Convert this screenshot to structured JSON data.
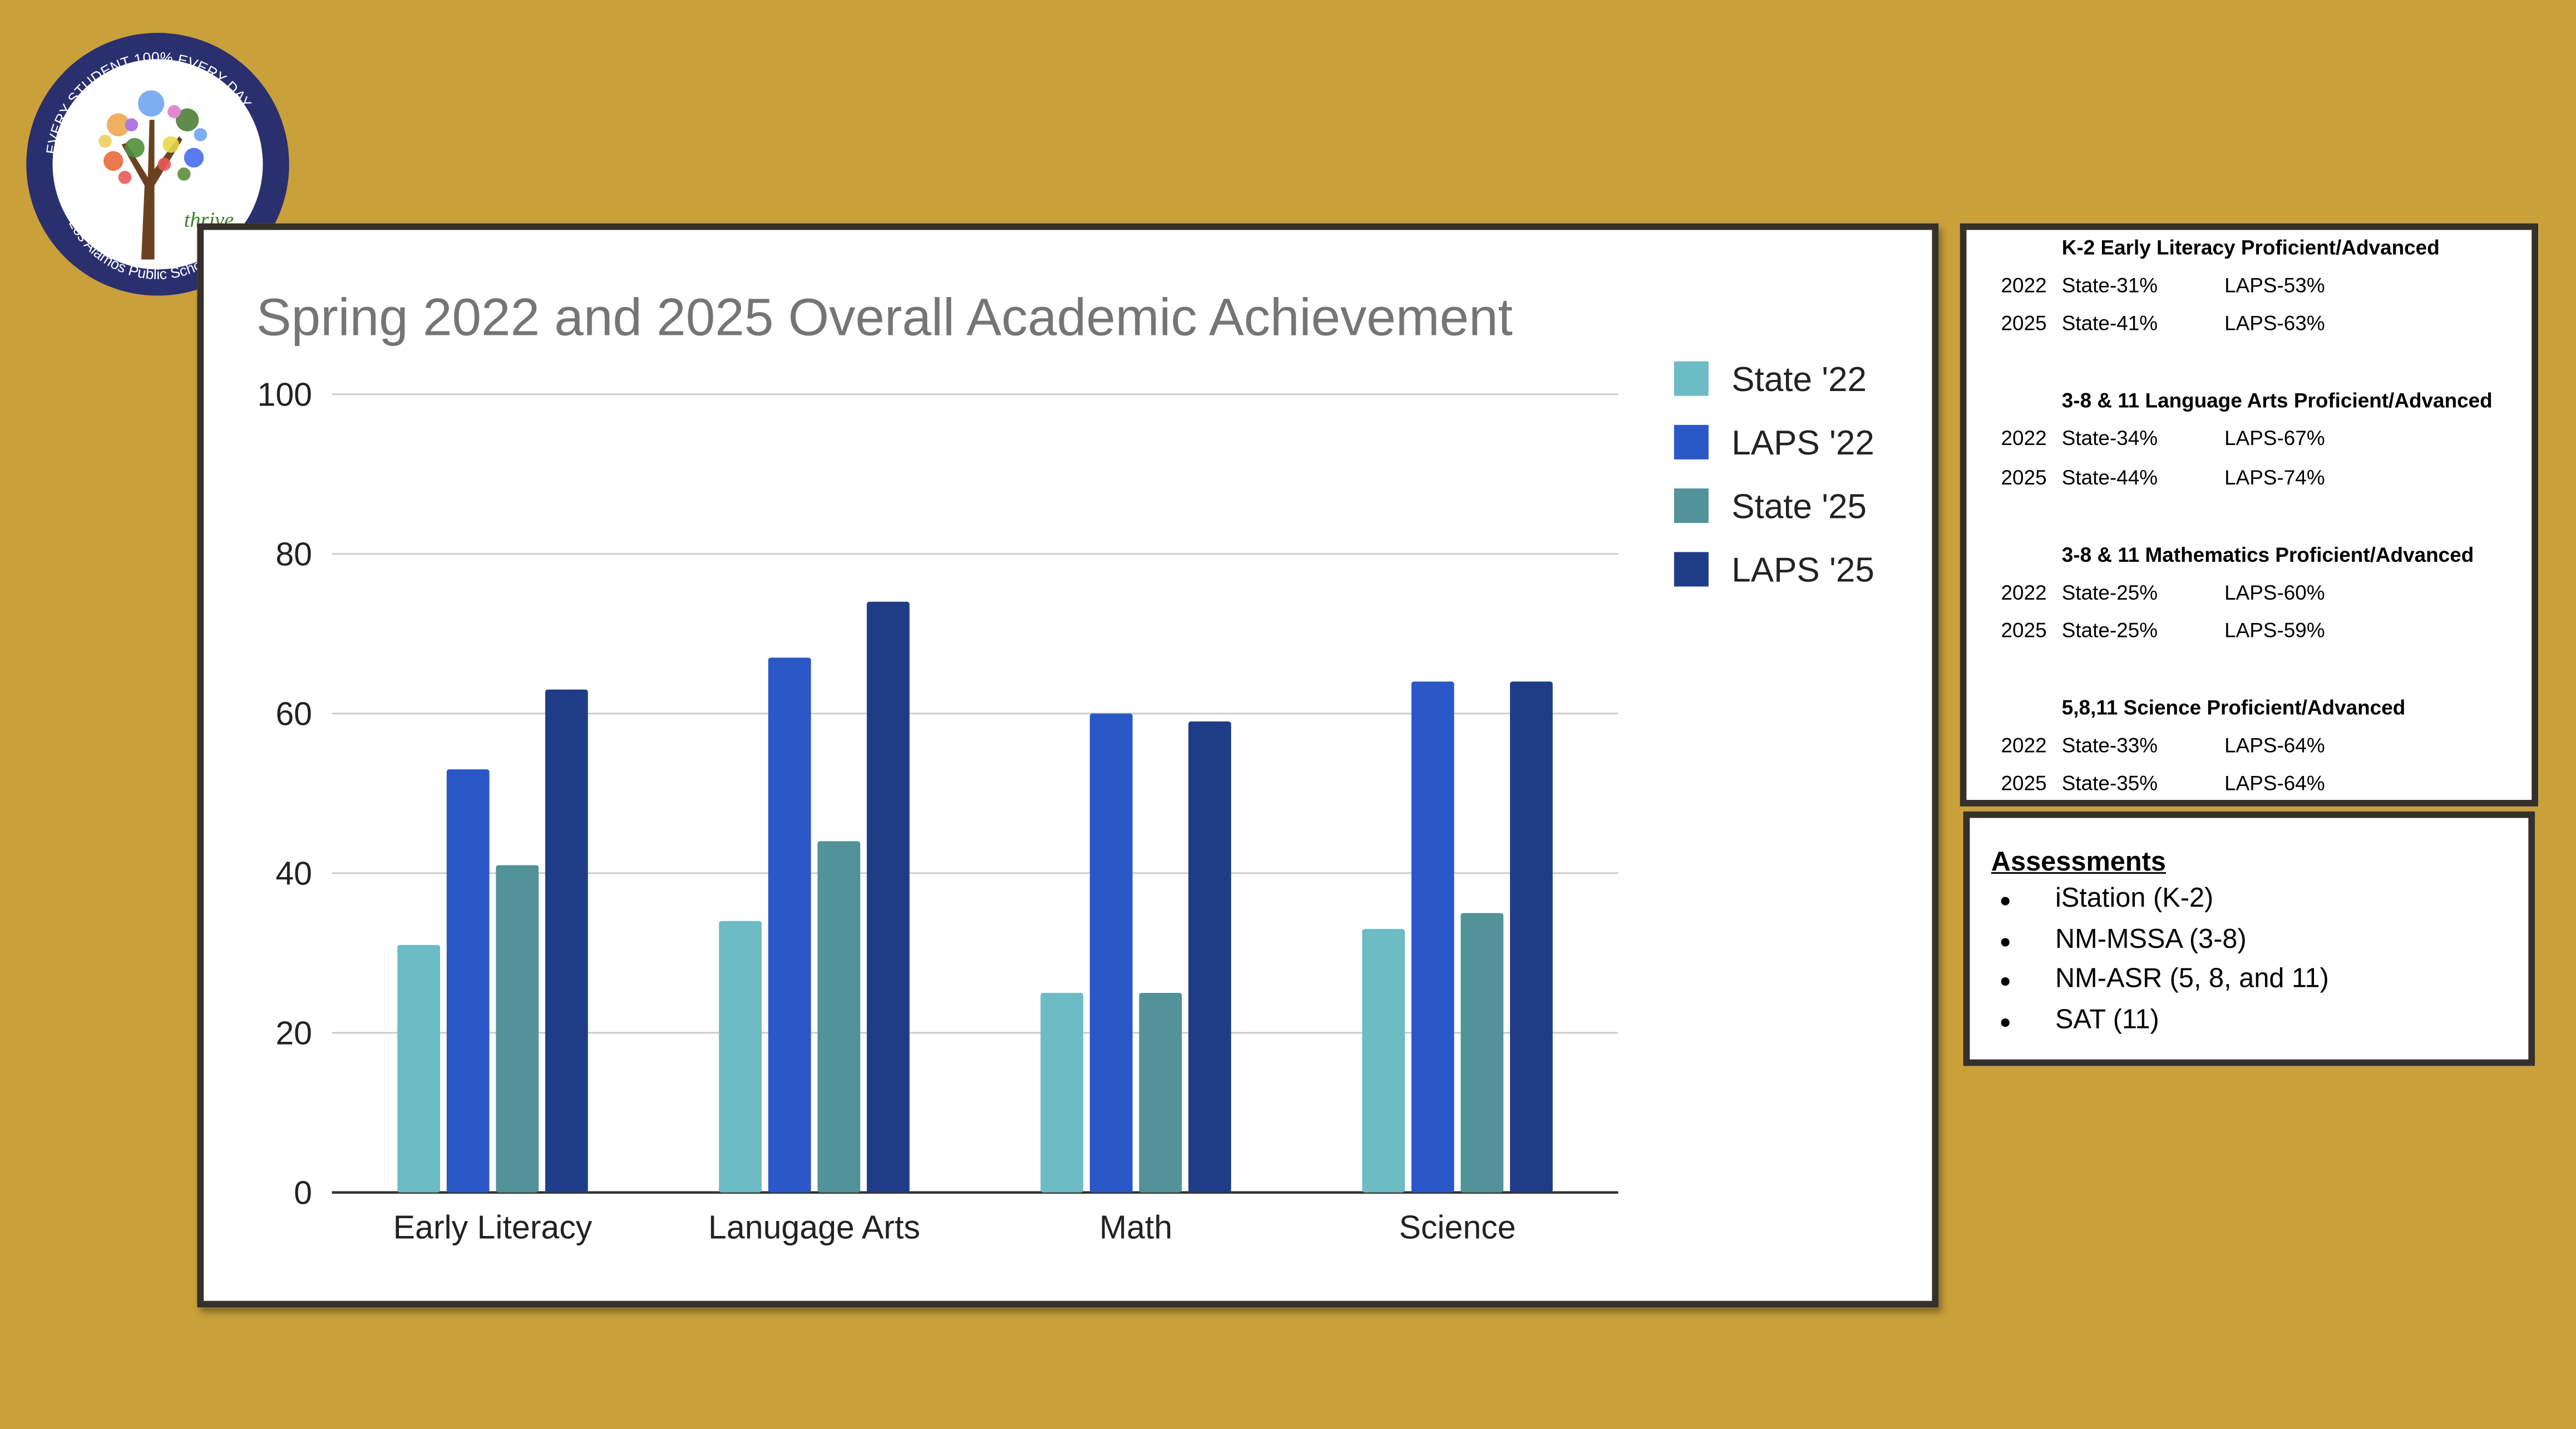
{
  "logo": {
    "top_text": "EVERY STUDENT",
    "center_text": "100%",
    "right_text": "EVERY DAY",
    "bottom_text": "Los Alamos Public Schools",
    "script_text": "thrive"
  },
  "chart_data": {
    "type": "bar",
    "title": "Spring 2022 and 2025 Overall Academic Achievement",
    "xlabel": "",
    "ylabel": "",
    "ylim": [
      0,
      100
    ],
    "yticks": [
      0,
      20,
      40,
      60,
      80,
      100
    ],
    "grid": true,
    "legend_position": "right",
    "categories": [
      "Early Literacy",
      "Lanugage Arts",
      "Math",
      "Science"
    ],
    "series": [
      {
        "name": "State '22",
        "color": "#6DBBC4",
        "values": [
          31,
          34,
          25,
          33
        ]
      },
      {
        "name": "LAPS '22",
        "color": "#2A58C8",
        "values": [
          53,
          67,
          60,
          64
        ]
      },
      {
        "name": "State '25",
        "color": "#529299",
        "values": [
          41,
          44,
          25,
          35
        ]
      },
      {
        "name": "LAPS '25",
        "color": "#1F3D87",
        "values": [
          63,
          74,
          59,
          64
        ]
      }
    ]
  },
  "stats": [
    {
      "heading": "K-2 Early Literacy Proficient/Advanced",
      "rows": [
        {
          "year": "2022",
          "state": "State-31%",
          "laps": "LAPS-53%"
        },
        {
          "year": "2025",
          "state": "State-41%",
          "laps": "LAPS-63%"
        }
      ]
    },
    {
      "heading": "3-8 & 11 Language Arts Proficient/Advanced",
      "rows": [
        {
          "year": "2022",
          "state": "State-34%",
          "laps": "LAPS-67%"
        },
        {
          "year": "2025",
          "state": "State-44%",
          "laps": "LAPS-74%"
        }
      ]
    },
    {
      "heading": "3-8 & 11 Mathematics Proficient/Advanced",
      "rows": [
        {
          "year": "2022",
          "state": "State-25%",
          "laps": "LAPS-60%"
        },
        {
          "year": "2025",
          "state": "State-25%",
          "laps": "LAPS-59%"
        }
      ]
    },
    {
      "heading": "5,8,11 Science Proficient/Advanced",
      "rows": [
        {
          "year": "2022",
          "state": "State-33%",
          "laps": "LAPS-64%"
        },
        {
          "year": "2025",
          "state": "State-35%",
          "laps": "LAPS-64%"
        }
      ]
    }
  ],
  "assessments": {
    "title": "Assessments",
    "bullet": "●",
    "items": [
      "iStation (K-2)",
      "NM-MSSA (3-8)",
      "NM-ASR (5, 8, and 11)",
      "SAT (11)"
    ]
  }
}
